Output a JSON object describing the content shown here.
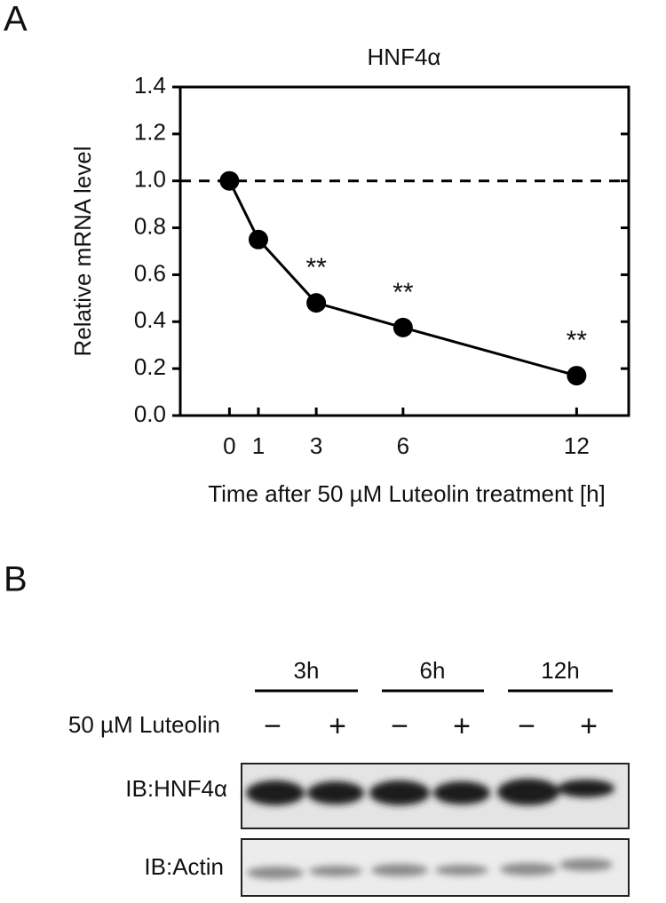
{
  "panel_labels": [
    "A",
    "B"
  ],
  "chart_data": {
    "type": "line",
    "title": "HNF4α",
    "xlabel": "Time after 50 µM Luteolin treatment [h]",
    "ylabel": "Relative mRNA level",
    "x": [
      0,
      1,
      3,
      6,
      12
    ],
    "values": [
      1.0,
      0.75,
      0.48,
      0.375,
      0.17
    ],
    "color": "#000000",
    "significance": [
      null,
      null,
      "**",
      "**",
      "**"
    ],
    "reference_line": 1.0,
    "xlim": [
      -1.7,
      13.8
    ],
    "xticks": [
      0,
      1,
      3,
      6,
      12
    ],
    "ylim": [
      0,
      1.4
    ],
    "yticks": [
      {
        "value": 0,
        "label": "0.0"
      },
      0.2,
      0.4,
      0.6,
      0.8,
      {
        "value": 1,
        "label": "1.0"
      },
      1.2,
      1.4
    ]
  },
  "blot": {
    "groups": [
      "3h",
      "6h",
      "12h"
    ],
    "treatment": "50 µM Luteolin",
    "signs": [
      "−",
      "+",
      "−",
      "+",
      "−",
      "+"
    ],
    "rows": [
      "IB:HNF4α",
      "IB:Actin"
    ]
  }
}
